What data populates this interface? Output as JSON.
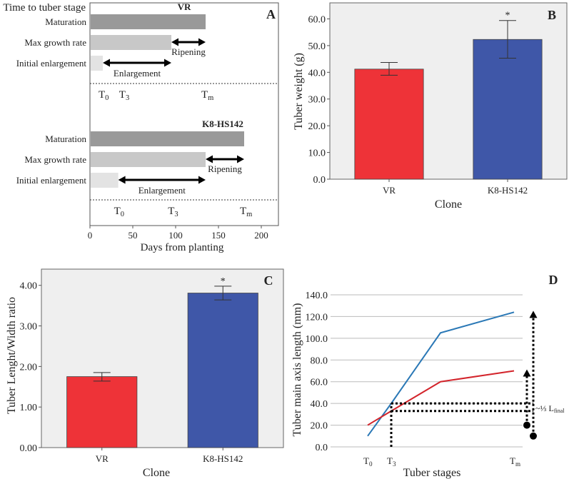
{
  "chart_data": [
    {
      "panel": "A",
      "type": "bar",
      "orientation": "horizontal",
      "title": "Time to tuber stage",
      "xlabel": "Days from planting",
      "xlim": [
        0,
        200
      ],
      "xticks": [
        "0",
        "50",
        "100",
        "150",
        "200"
      ],
      "stage_labels": [
        "Maturation",
        "Max growth rate",
        "Initial enlargement"
      ],
      "groups": [
        {
          "name": "VR",
          "values": [
            135,
            95,
            15
          ],
          "annotations": [
            {
              "label": "Ripening",
              "from": 95,
              "to": 135
            },
            {
              "label": "Enlargement",
              "from": 15,
              "to": 95
            }
          ],
          "markers": [
            {
              "label": "T",
              "sub": "0",
              "x": 15
            },
            {
              "label": "T",
              "sub": "3",
              "x": 39
            },
            {
              "label": "T",
              "sub": "m",
              "x": 135
            }
          ]
        },
        {
          "name": "K8-HS142",
          "values": [
            180,
            135,
            33
          ],
          "annotations": [
            {
              "label": "Ripening",
              "from": 135,
              "to": 180
            },
            {
              "label": "Enlargement",
              "from": 33,
              "to": 135
            }
          ],
          "markers": [
            {
              "label": "T",
              "sub": "0",
              "x": 33
            },
            {
              "label": "T",
              "sub": "3",
              "x": 96
            },
            {
              "label": "T",
              "sub": "m",
              "x": 180
            }
          ]
        }
      ],
      "colors": {
        "Maturation": "#999999",
        "Max growth rate": "#c8c8c8",
        "Initial enlargement": "#e3e3e3"
      }
    },
    {
      "panel": "B",
      "type": "bar",
      "categories": [
        "VR",
        "K8-HS142"
      ],
      "values": [
        41.2,
        52.3
      ],
      "error_low": [
        38.9,
        45.3
      ],
      "error_high": [
        43.7,
        59.4
      ],
      "significance": [
        "",
        "*"
      ],
      "colors": [
        "#ee3338",
        "#3f57a8"
      ],
      "xlabel": "Clone",
      "ylabel": "Tuber weight (g)",
      "ylim": [
        0,
        66
      ],
      "yticks": [
        "0.0",
        "10.0",
        "20.0",
        "30.0",
        "40.0",
        "50.0",
        "60.0"
      ]
    },
    {
      "panel": "C",
      "type": "bar",
      "categories": [
        "VR",
        "K8-HS142"
      ],
      "values": [
        1.75,
        3.81
      ],
      "error_low": [
        1.64,
        3.64
      ],
      "error_high": [
        1.85,
        3.98
      ],
      "significance": [
        "",
        "*"
      ],
      "colors": [
        "#ee3338",
        "#3f57a8"
      ],
      "xlabel": "Clone",
      "ylabel": "Tuber Lenght/Width ratio",
      "ylim": [
        0,
        4.4
      ],
      "yticks": [
        "0.00",
        "1.00",
        "2.00",
        "3.00",
        "4.00"
      ]
    },
    {
      "panel": "D",
      "type": "line",
      "x": [
        "T0",
        "T3",
        "",
        "Tm"
      ],
      "xtick_labels": [
        {
          "label": "T",
          "sub": "0"
        },
        {
          "label": "T",
          "sub": "3"
        },
        {
          "label": "T",
          "sub": "m"
        }
      ],
      "series": [
        {
          "name": "K8-HS142",
          "color": "#2a78b6",
          "values": [
            10,
            40,
            105,
            124
          ]
        },
        {
          "name": "VR",
          "color": "#d3242b",
          "values": [
            20,
            33,
            60,
            70
          ]
        }
      ],
      "xlabel": "Tuber stages",
      "ylabel": "Tuber main axis length (mm)",
      "ylim": [
        0,
        140
      ],
      "yticks": [
        "0.0",
        "20.0",
        "40.0",
        "60.0",
        "80.0",
        "100.0",
        "120.0",
        "140.0"
      ],
      "annotation": {
        "prefix": "~⅓ L",
        "sub": "final"
      },
      "guides": {
        "T3_levels": [
          40,
          33
        ],
        "arrows": [
          {
            "from": 20,
            "to": 70
          },
          {
            "from": 10,
            "to": 124
          }
        ]
      }
    }
  ],
  "panel_labels": [
    "A",
    "B",
    "C",
    "D"
  ]
}
